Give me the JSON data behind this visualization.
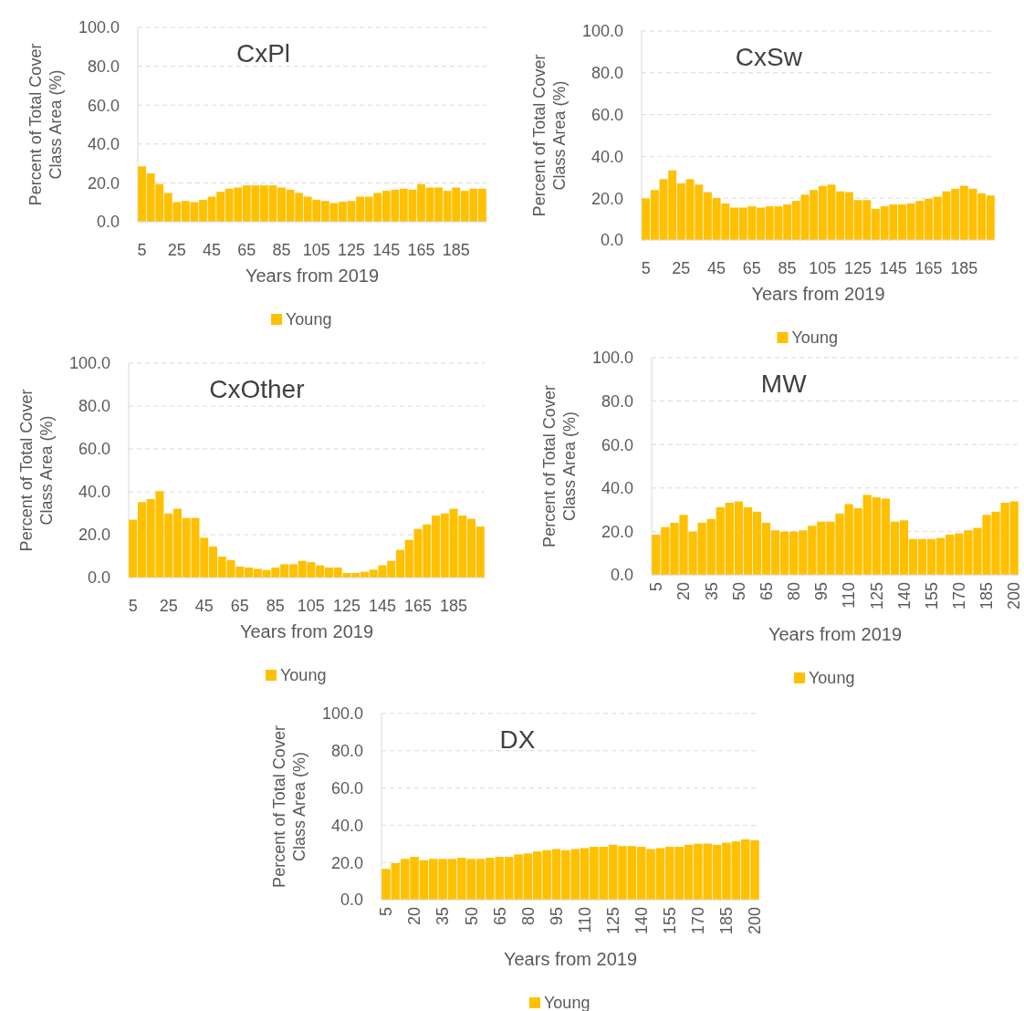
{
  "chart_data": [
    {
      "type": "bar",
      "title": "CxPl",
      "xlabel": "Years from 2019",
      "ylabel": "Percent of Total Cover\nClass Area (%)",
      "categories": [
        "5",
        null,
        null,
        null,
        "25",
        null,
        null,
        null,
        "45",
        null,
        null,
        null,
        "65",
        null,
        null,
        null,
        "85",
        null,
        null,
        null,
        "105",
        null,
        null,
        null,
        "125",
        null,
        null,
        null,
        "145",
        null,
        null,
        null,
        "165",
        null,
        null,
        null,
        "185",
        null,
        null,
        null
      ],
      "series": [
        {
          "name": "Young",
          "color": "#ffc000",
          "values": [
            28.5,
            24.9,
            19.4,
            14.8,
            10.1,
            10.7,
            10.1,
            11.3,
            12.9,
            15.4,
            17,
            17.6,
            18.7,
            18.7,
            18.7,
            18.7,
            17.6,
            16.5,
            14.8,
            12.9,
            11.3,
            10.7,
            9.6,
            10.3,
            10.7,
            12.9,
            12.9,
            14.8,
            15.9,
            16.5,
            17,
            16.5,
            19.4,
            17.6,
            17.6,
            15.9,
            17.6,
            15.9,
            17,
            17
          ]
        }
      ],
      "ylim": [
        0,
        100
      ],
      "yticks": [
        {
          "value": 0,
          "label": "0.0"
        },
        {
          "value": 20,
          "label": "20.0"
        },
        {
          "value": 40,
          "label": "40.0"
        },
        {
          "value": 60,
          "label": "60.0"
        },
        {
          "value": 80,
          "label": "80.0"
        },
        {
          "value": 100,
          "label": "100.0"
        }
      ],
      "grid": "y",
      "legend": "bottom"
    },
    {
      "type": "bar",
      "title": "CxSw",
      "xlabel": "Years from 2019",
      "ylabel": "Percent of Total Cover\nClass Area (%)",
      "categories": [
        "5",
        null,
        null,
        null,
        "25",
        null,
        null,
        null,
        "45",
        null,
        null,
        null,
        "65",
        null,
        null,
        null,
        "85",
        null,
        null,
        null,
        "105",
        null,
        null,
        null,
        "125",
        null,
        null,
        null,
        "145",
        null,
        null,
        null,
        "165",
        null,
        null,
        null,
        "185",
        null,
        null,
        null
      ],
      "series": [
        {
          "name": "Young",
          "color": "#ffc000",
          "values": [
            19.9,
            23.9,
            29.1,
            33.3,
            27.1,
            29.1,
            26.5,
            22.9,
            20.1,
            17.5,
            15.5,
            15.5,
            16.1,
            15.5,
            16.1,
            16.1,
            17,
            18.7,
            21.7,
            23.9,
            25.9,
            26.5,
            23.3,
            22.9,
            19.1,
            19.1,
            14.9,
            16.1,
            17,
            17,
            17.5,
            18.7,
            19.7,
            20.7,
            23.3,
            24.5,
            25.9,
            24.5,
            22.3,
            21.3
          ]
        }
      ],
      "ylim": [
        0,
        100
      ],
      "yticks": [
        {
          "value": 0,
          "label": "0.0"
        },
        {
          "value": 20,
          "label": "20.0"
        },
        {
          "value": 40,
          "label": "40.0"
        },
        {
          "value": 60,
          "label": "60.0"
        },
        {
          "value": 80,
          "label": "80.0"
        },
        {
          "value": 100,
          "label": "100.0"
        }
      ],
      "grid": "y",
      "legend": "bottom"
    },
    {
      "type": "bar",
      "title": "CxOther",
      "xlabel": "Years from 2019",
      "ylabel": "Percent of Total Cover\nClass Area (%)",
      "categories": [
        "5",
        null,
        null,
        null,
        "25",
        null,
        null,
        null,
        "45",
        null,
        null,
        null,
        "65",
        null,
        null,
        null,
        "85",
        null,
        null,
        null,
        "105",
        null,
        null,
        null,
        "125",
        null,
        null,
        null,
        "145",
        null,
        null,
        null,
        "165",
        null,
        null,
        null,
        "185",
        null,
        null,
        null
      ],
      "series": [
        {
          "name": "Young",
          "color": "#ffc000",
          "values": [
            27,
            35.2,
            36.6,
            40.3,
            29.9,
            32.1,
            27.8,
            27.8,
            18.6,
            14.5,
            9.8,
            8.2,
            5.1,
            4.7,
            4.1,
            3.5,
            4.7,
            6.2,
            6.2,
            7.8,
            7.2,
            5.7,
            4.7,
            4.7,
            2.1,
            2.1,
            2.7,
            3.7,
            5.7,
            7.8,
            12.9,
            17.6,
            22.7,
            24.8,
            28.9,
            29.9,
            32.1,
            28.9,
            27.4,
            23.8
          ]
        }
      ],
      "ylim": [
        0,
        100
      ],
      "yticks": [
        {
          "value": 0,
          "label": "0.0"
        },
        {
          "value": 20,
          "label": "20.0"
        },
        {
          "value": 40,
          "label": "40.0"
        },
        {
          "value": 60,
          "label": "60.0"
        },
        {
          "value": 80,
          "label": "80.0"
        },
        {
          "value": 100,
          "label": "100.0"
        }
      ],
      "grid": "y",
      "legend": "bottom"
    },
    {
      "type": "bar",
      "title": "MW",
      "xlabel": "Years from 2019",
      "ylabel": "Percent of Total Cover\nClass Area (%)",
      "categories": [
        "5",
        null,
        null,
        "20",
        null,
        null,
        "35",
        null,
        null,
        "50",
        null,
        null,
        "65",
        null,
        null,
        "80",
        null,
        null,
        "95",
        null,
        null,
        "110",
        null,
        null,
        "125",
        null,
        null,
        "140",
        null,
        null,
        "155",
        null,
        null,
        "170",
        null,
        null,
        "185",
        null,
        null,
        "200"
      ],
      "series": [
        {
          "name": "Young",
          "color": "#ffc000",
          "values": [
            18.5,
            22,
            24,
            27.6,
            19.9,
            24,
            25.7,
            31.1,
            33.2,
            33.8,
            31.1,
            29.1,
            24,
            20.5,
            19.9,
            19.9,
            20.5,
            22.6,
            24.5,
            24.5,
            28.2,
            32.6,
            30.7,
            36.8,
            35.7,
            35.1,
            24.5,
            25.1,
            16.5,
            16.5,
            16.5,
            17,
            18.5,
            19.1,
            20.5,
            21.6,
            27.6,
            29.1,
            33.2,
            33.8
          ]
        }
      ],
      "ylim": [
        0,
        100
      ],
      "yticks": [
        {
          "value": 0,
          "label": "0.0"
        },
        {
          "value": 20,
          "label": "20.0"
        },
        {
          "value": 40,
          "label": "40.0"
        },
        {
          "value": 60,
          "label": "60.0"
        },
        {
          "value": 80,
          "label": "80.0"
        },
        {
          "value": 100,
          "label": "100.0"
        }
      ],
      "grid": "y",
      "legend": "bottom"
    },
    {
      "type": "bar",
      "title": "DX",
      "xlabel": "Years from 2019",
      "ylabel": "Percent of Total Cover\nClass Area (%)",
      "categories": [
        "5",
        null,
        null,
        "20",
        null,
        null,
        "35",
        null,
        null,
        "50",
        null,
        null,
        "65",
        null,
        null,
        "80",
        null,
        null,
        "95",
        null,
        null,
        "110",
        null,
        null,
        "125",
        null,
        null,
        "140",
        null,
        null,
        "155",
        null,
        null,
        "170",
        null,
        null,
        "185",
        null,
        null,
        "200"
      ],
      "series": [
        {
          "name": "Young",
          "color": "#ffc000",
          "values": [
            16.5,
            19.6,
            21.9,
            23,
            21.2,
            21.9,
            21.9,
            21.9,
            22.5,
            21.9,
            21.9,
            22.5,
            23,
            23,
            24.3,
            24.8,
            25.9,
            26.6,
            27.2,
            26.6,
            27.2,
            27.7,
            28.4,
            28.4,
            29.5,
            28.8,
            28.8,
            28.4,
            27.2,
            27.7,
            28.4,
            28.4,
            29.5,
            30.1,
            30.1,
            29.5,
            30.6,
            31.3,
            32.4,
            31.9
          ]
        }
      ],
      "ylim": [
        0,
        100
      ],
      "yticks": [
        {
          "value": 0,
          "label": "0.0"
        },
        {
          "value": 20,
          "label": "20.0"
        },
        {
          "value": 40,
          "label": "40.0"
        },
        {
          "value": 60,
          "label": "60.0"
        },
        {
          "value": 80,
          "label": "80.0"
        },
        {
          "value": 100,
          "label": "100.0"
        }
      ],
      "grid": "y",
      "legend": "bottom"
    }
  ]
}
